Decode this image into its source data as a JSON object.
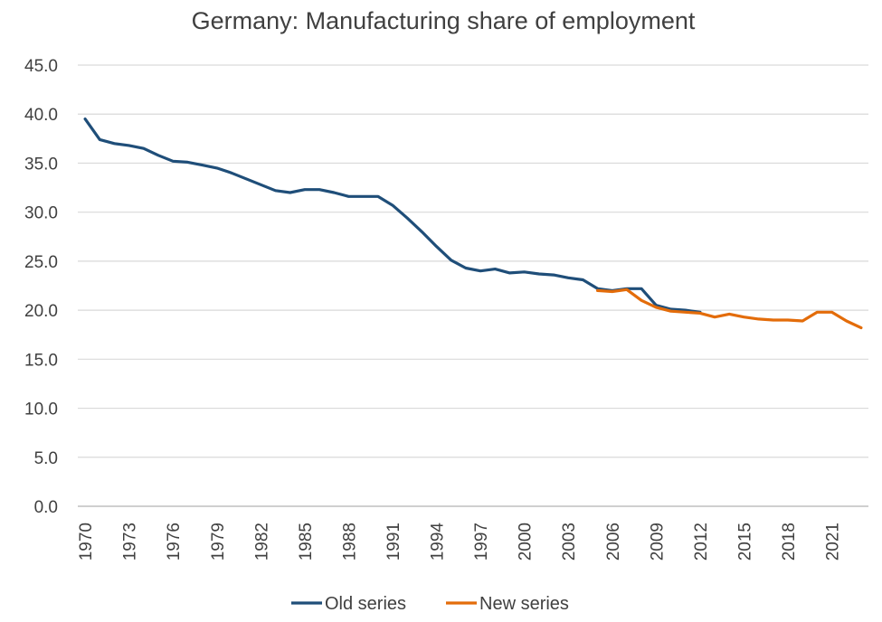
{
  "chart_data": {
    "type": "line",
    "title": "Germany: Manufacturing share of employment",
    "xlabel": "",
    "ylabel": "",
    "ylim": [
      0,
      45
    ],
    "yticks": [
      "0.0",
      "5.0",
      "10.0",
      "15.0",
      "20.0",
      "25.0",
      "30.0",
      "35.0",
      "40.0",
      "45.0"
    ],
    "xlim": [
      1970,
      2023
    ],
    "xticks": [
      "1970",
      "1973",
      "1976",
      "1979",
      "1982",
      "1985",
      "1988",
      "1991",
      "1994",
      "1997",
      "2000",
      "2003",
      "2006",
      "2009",
      "2012",
      "2015",
      "2018",
      "2021"
    ],
    "grid": true,
    "legend_position": "bottom",
    "series": [
      {
        "name": "Old series",
        "color": "#1f4e79",
        "x": [
          1970,
          1971,
          1972,
          1973,
          1974,
          1975,
          1976,
          1977,
          1978,
          1979,
          1980,
          1981,
          1982,
          1983,
          1984,
          1985,
          1986,
          1987,
          1988,
          1989,
          1990,
          1991,
          1992,
          1993,
          1994,
          1995,
          1996,
          1997,
          1998,
          1999,
          2000,
          2001,
          2002,
          2003,
          2004,
          2005,
          2006,
          2007,
          2008,
          2009,
          2010,
          2011,
          2012
        ],
        "values": [
          39.5,
          37.4,
          37.0,
          36.8,
          36.5,
          35.8,
          35.2,
          35.1,
          34.8,
          34.5,
          34.0,
          33.4,
          32.8,
          32.2,
          32.0,
          32.3,
          32.3,
          32.0,
          31.6,
          31.6,
          31.6,
          30.7,
          29.4,
          28.0,
          26.5,
          25.1,
          24.3,
          24.0,
          24.2,
          23.8,
          23.9,
          23.7,
          23.6,
          23.3,
          23.1,
          22.2,
          22.0,
          22.2,
          22.2,
          20.5,
          20.1,
          20.0,
          19.8
        ]
      },
      {
        "name": "New series",
        "color": "#e36c0a",
        "x": [
          2005,
          2006,
          2007,
          2008,
          2009,
          2010,
          2011,
          2012,
          2013,
          2014,
          2015,
          2016,
          2017,
          2018,
          2019,
          2020,
          2021,
          2022,
          2023
        ],
        "values": [
          22.0,
          21.9,
          22.1,
          21.0,
          20.3,
          19.9,
          19.8,
          19.7,
          19.3,
          19.6,
          19.3,
          19.1,
          19.0,
          19.0,
          18.9,
          19.8,
          19.8,
          18.9,
          18.2
        ]
      }
    ]
  }
}
